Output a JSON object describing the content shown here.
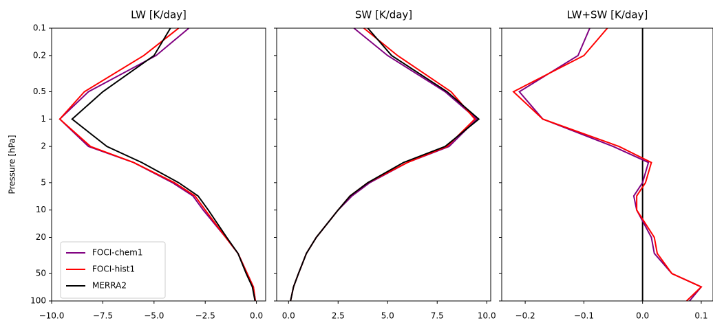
{
  "chart_data": [
    {
      "type": "line",
      "title": "LW [K/day]",
      "ylabel": "Pressure [hPa]",
      "yscale": "log",
      "ylim": [
        100,
        0.1
      ],
      "yticks": [
        0.1,
        0.2,
        0.5,
        1,
        2,
        5,
        10,
        20,
        50,
        100
      ],
      "xlim": [
        -10,
        0.45
      ],
      "xticks": [
        {
          "value": -10,
          "label": "−10.0"
        },
        {
          "value": -7.5,
          "label": "−7.5"
        },
        {
          "value": -5,
          "label": "−5.0"
        },
        {
          "value": -2.5,
          "label": "−2.5"
        },
        {
          "value": 0,
          "label": "0.0"
        }
      ],
      "legend": "lower left",
      "y": [
        0.1,
        0.2,
        0.5,
        1,
        2,
        3,
        5,
        7,
        10,
        20,
        30,
        50,
        70,
        100
      ],
      "series": [
        {
          "name": "FOCI-chem1",
          "color": "#800080",
          "values": [
            -3.3,
            -4.9,
            -8.2,
            -9.6,
            -8.2,
            -6.0,
            -4.1,
            -3.1,
            -2.6,
            -1.5,
            -0.9,
            -0.45,
            -0.15,
            -0.05
          ]
        },
        {
          "name": "FOCI-hist1",
          "color": "#ff0000",
          "values": [
            -3.8,
            -5.5,
            -8.4,
            -9.6,
            -8.1,
            -6.0,
            -4.0,
            -3.0,
            -2.5,
            -1.5,
            -0.9,
            -0.45,
            -0.15,
            -0.05
          ]
        },
        {
          "name": "MERRA2",
          "color": "#000000",
          "values": [
            -4.2,
            -5.0,
            -7.5,
            -9.0,
            -7.3,
            -5.6,
            -3.8,
            -2.85,
            -2.35,
            -1.45,
            -0.9,
            -0.5,
            -0.2,
            -0.07
          ]
        }
      ]
    },
    {
      "type": "line",
      "title": "SW [K/day]",
      "yscale": "log",
      "ylim": [
        100,
        0.1
      ],
      "xlim": [
        -0.6,
        10.2
      ],
      "xticks": [
        {
          "value": 0,
          "label": "0.0"
        },
        2.5,
        {
          "value": 5,
          "label": "5.0"
        },
        7.5,
        {
          "value": 10,
          "label": "10.0"
        }
      ],
      "y": [
        0.1,
        0.2,
        0.5,
        1,
        2,
        3,
        5,
        7,
        10,
        20,
        30,
        50,
        70,
        100
      ],
      "series": [
        {
          "name": "FOCI-chem1",
          "color": "#800080",
          "values": [
            3.3,
            5.0,
            7.9,
            9.5,
            8.1,
            6.0,
            4.1,
            3.2,
            2.5,
            1.4,
            0.9,
            0.5,
            0.25,
            0.1
          ]
        },
        {
          "name": "FOCI-hist1",
          "color": "#ff0000",
          "values": [
            3.8,
            5.5,
            8.2,
            9.4,
            8.0,
            6.0,
            4.0,
            3.1,
            2.5,
            1.4,
            0.9,
            0.5,
            0.25,
            0.1
          ]
        },
        {
          "name": "MERRA2",
          "color": "#000000",
          "values": [
            4.0,
            5.2,
            8.0,
            9.6,
            7.9,
            5.8,
            4.0,
            3.1,
            2.5,
            1.4,
            0.9,
            0.5,
            0.25,
            0.1
          ]
        }
      ]
    },
    {
      "type": "line",
      "title": "LW+SW [K/day]",
      "yscale": "log",
      "ylim": [
        100,
        0.1
      ],
      "xlim": [
        -0.24,
        0.12
      ],
      "xticks": [
        {
          "value": -0.2,
          "label": "−0.2"
        },
        {
          "value": -0.1,
          "label": "−0.1"
        },
        {
          "value": 0,
          "label": "0.0"
        },
        0.1
      ],
      "vline": 0,
      "y": [
        0.1,
        0.2,
        0.5,
        1,
        2,
        3,
        5,
        7,
        10,
        20,
        30,
        50,
        70,
        100
      ],
      "series": [
        {
          "name": "FOCI-chem1",
          "color": "#800080",
          "values": [
            -0.09,
            -0.11,
            -0.21,
            -0.17,
            -0.05,
            0.01,
            0.0,
            -0.015,
            -0.01,
            0.015,
            0.02,
            0.05,
            0.1,
            0.08
          ]
        },
        {
          "name": "FOCI-hist1",
          "color": "#ff0000",
          "values": [
            -0.06,
            -0.1,
            -0.22,
            -0.17,
            -0.04,
            0.015,
            0.005,
            -0.01,
            -0.01,
            0.02,
            0.025,
            0.05,
            0.1,
            0.075
          ]
        }
      ]
    }
  ]
}
